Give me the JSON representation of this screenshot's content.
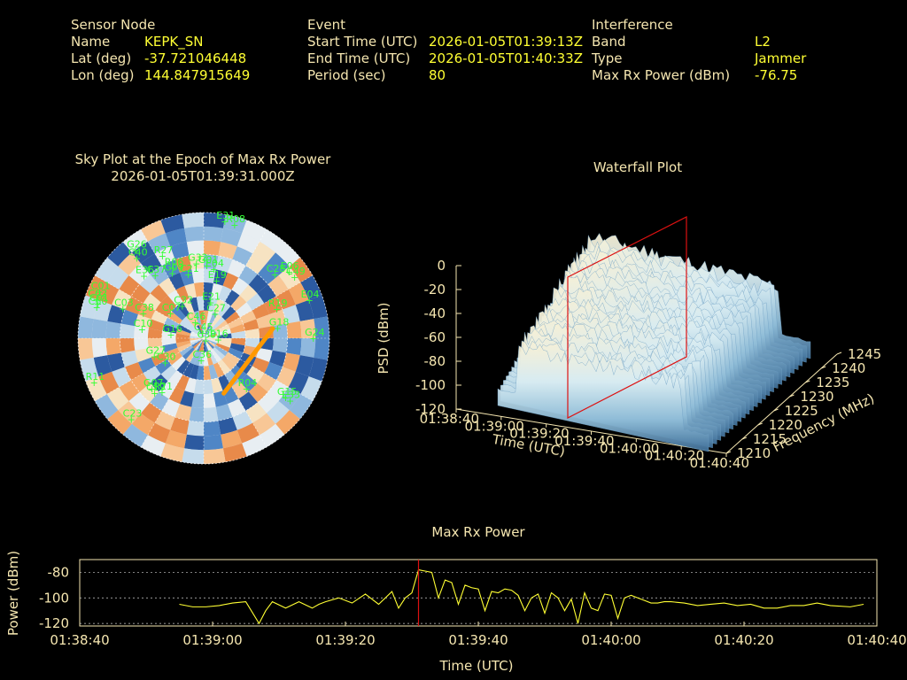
{
  "header": {
    "sensor": {
      "title": "Sensor Node",
      "rows": [
        {
          "k": "Name",
          "v": "KEPK_SN"
        },
        {
          "k": "Lat (deg)",
          "v": "-37.721046448"
        },
        {
          "k": "Lon (deg)",
          "v": "144.847915649"
        }
      ]
    },
    "event": {
      "title": "Event",
      "rows": [
        {
          "k": "Start Time (UTC)",
          "v": "2026-01-05T01:39:13Z"
        },
        {
          "k": "End Time (UTC)",
          "v": "2026-01-05T01:40:33Z"
        },
        {
          "k": "Period (sec)",
          "v": "80"
        }
      ]
    },
    "interference": {
      "title": "Interference",
      "rows": [
        {
          "k": "Band",
          "v": "L2"
        },
        {
          "k": "Type",
          "v": "Jammer"
        },
        {
          "k": "Max Rx Power (dBm)",
          "v": "-76.75"
        }
      ]
    }
  },
  "colors": {
    "text": "#f5e6b0",
    "value": "#ffff33",
    "sat": "#33ff33",
    "marker": "#cc0000",
    "trace": "#ffff33",
    "track": "#ff9900"
  },
  "chart_data": [
    {
      "type": "polar",
      "title": "Sky Plot at the Epoch of Max Rx Power",
      "subtitle": "2026-01-05T01:39:31.000Z",
      "satellites": [
        {
          "id": "G26",
          "az": 322,
          "el": 10
        },
        {
          "id": "C40",
          "az": 320,
          "el": 15
        },
        {
          "id": "R27",
          "az": 333,
          "el": 24
        },
        {
          "id": "E31",
          "az": 10,
          "el": 5
        },
        {
          "id": "R08",
          "az": 15,
          "el": 6
        },
        {
          "id": "C28",
          "az": 48,
          "el": 22
        },
        {
          "id": "E06",
          "az": 52,
          "el": 13
        },
        {
          "id": "C49",
          "az": 56,
          "el": 12
        },
        {
          "id": "R06",
          "az": 336,
          "el": 35
        },
        {
          "id": "C21",
          "az": 346,
          "el": 43
        },
        {
          "id": "G32",
          "az": 354,
          "el": 36
        },
        {
          "id": "G01",
          "az": 2,
          "el": 38
        },
        {
          "id": "E04",
          "az": 8,
          "el": 40
        },
        {
          "id": "E19",
          "az": 12,
          "el": 48
        },
        {
          "id": "G09",
          "az": 334,
          "el": 38
        },
        {
          "id": "E36",
          "az": 316,
          "el": 28
        },
        {
          "id": "C37",
          "az": 322,
          "el": 33
        },
        {
          "id": "E04",
          "az": 70,
          "el": 10
        },
        {
          "id": "C01",
          "az": 288,
          "el": 10
        },
        {
          "id": "C01",
          "az": 294,
          "el": 8
        },
        {
          "id": "C02",
          "az": 290,
          "el": 8
        },
        {
          "id": "C60",
          "az": 286,
          "el": 10
        },
        {
          "id": "C03",
          "az": 290,
          "el": 28
        },
        {
          "id": "C32",
          "az": 326,
          "el": 62
        },
        {
          "id": "E21",
          "az": 10,
          "el": 64
        },
        {
          "id": "R19",
          "az": 68,
          "el": 34
        },
        {
          "id": "C27",
          "az": 24,
          "el": 71
        },
        {
          "id": "C38",
          "az": 292,
          "el": 43
        },
        {
          "id": "C07",
          "az": 306,
          "el": 60
        },
        {
          "id": "C46",
          "az": 330,
          "el": 77
        },
        {
          "id": "G18",
          "az": 82,
          "el": 37
        },
        {
          "id": "C10",
          "az": 278,
          "el": 45
        },
        {
          "id": "C45",
          "az": 340,
          "el": 86
        },
        {
          "id": "G16",
          "az": 276,
          "el": 66
        },
        {
          "id": "E16",
          "az": 96,
          "el": 80
        },
        {
          "id": "G24",
          "az": 90,
          "el": 12
        },
        {
          "id": "C30",
          "az": 238,
          "el": 57
        },
        {
          "id": "G27",
          "az": 250,
          "el": 52
        },
        {
          "id": "C39",
          "az": 150,
          "el": 88
        },
        {
          "id": "C36",
          "az": 188,
          "el": 74
        },
        {
          "id": "R04",
          "az": 140,
          "el": 43
        },
        {
          "id": "R11",
          "az": 248,
          "el": 5
        },
        {
          "id": "G07",
          "az": 226,
          "el": 38
        },
        {
          "id": "C19",
          "az": 222,
          "el": 37
        },
        {
          "id": "R21",
          "az": 218,
          "el": 41
        },
        {
          "id": "G15",
          "az": 126,
          "el": 18
        },
        {
          "id": "C23",
          "az": 222,
          "el": 12
        },
        {
          "id": "E33",
          "az": 126,
          "el": 14
        }
      ],
      "track": {
        "az_start": 160,
        "el_start": 48,
        "az_end": 82,
        "el_end": 40
      }
    },
    {
      "type": "surface",
      "title": "Waterfall Plot",
      "zlabel": "PSD (dBm)",
      "xlabel": "Time (UTC)",
      "ylabel": "Frequency (MHz)",
      "z_ticks": [
        "0",
        "-20",
        "-40",
        "-60",
        "-80",
        "-100",
        "-120"
      ],
      "x_ticks": [
        "01:38:40",
        "01:39:00",
        "01:39:20",
        "01:39:40",
        "01:40:00",
        "01:40:20",
        "01:40:40"
      ],
      "y_ticks": [
        "1210",
        "1215",
        "1220",
        "1225",
        "1230",
        "1235",
        "1240",
        "1245"
      ],
      "zlim": [
        -120,
        0
      ],
      "marker_time": "01:39:31"
    },
    {
      "type": "line",
      "title": "Max Rx Power",
      "xlabel": "Time (UTC)",
      "ylabel": "Power (dBm)",
      "x_ticks": [
        "01:38:40",
        "01:39:00",
        "01:39:20",
        "01:39:40",
        "01:40:00",
        "01:40:20",
        "01:40:40"
      ],
      "y_ticks": [
        "-80",
        "-100",
        "-120"
      ],
      "ylim": [
        -122,
        -70
      ],
      "xlim_sec": [
        0,
        120
      ],
      "marker_sec": 51,
      "x_sec": [
        15,
        17,
        19,
        21,
        23,
        25,
        27,
        28,
        29,
        31,
        33,
        35,
        36,
        37,
        39,
        41,
        43,
        45,
        47,
        48,
        49,
        50,
        51,
        52,
        53,
        54,
        55,
        56,
        57,
        58,
        59,
        60,
        61,
        62,
        63,
        64,
        65,
        66,
        67,
        68,
        69,
        70,
        71,
        72,
        73,
        74,
        75,
        76,
        77,
        78,
        79,
        80,
        81,
        82,
        83,
        84,
        85,
        86,
        87,
        88,
        89,
        91,
        93,
        95,
        97,
        99,
        101,
        103,
        105,
        107,
        109,
        111,
        113,
        116,
        118
      ],
      "values": [
        -105,
        -107,
        -107,
        -106,
        -104,
        -103,
        -120,
        -110,
        -103,
        -108,
        -103,
        -108,
        -105,
        -103,
        -100,
        -104,
        -97,
        -105,
        -95,
        -108,
        -100,
        -96,
        -78,
        -79,
        -80,
        -100,
        -86,
        -88,
        -105,
        -90,
        -92,
        -93,
        -110,
        -95,
        -96,
        -93,
        -94,
        -98,
        -110,
        -100,
        -97,
        -112,
        -96,
        -100,
        -110,
        -101,
        -120,
        -96,
        -108,
        -110,
        -97,
        -98,
        -116,
        -100,
        -98,
        -100,
        -102,
        -104,
        -104,
        -103,
        -103,
        -104,
        -106,
        -105,
        -104,
        -106,
        -105,
        -108,
        -108,
        -106,
        -106,
        -104,
        -106,
        -107,
        -105
      ]
    }
  ]
}
